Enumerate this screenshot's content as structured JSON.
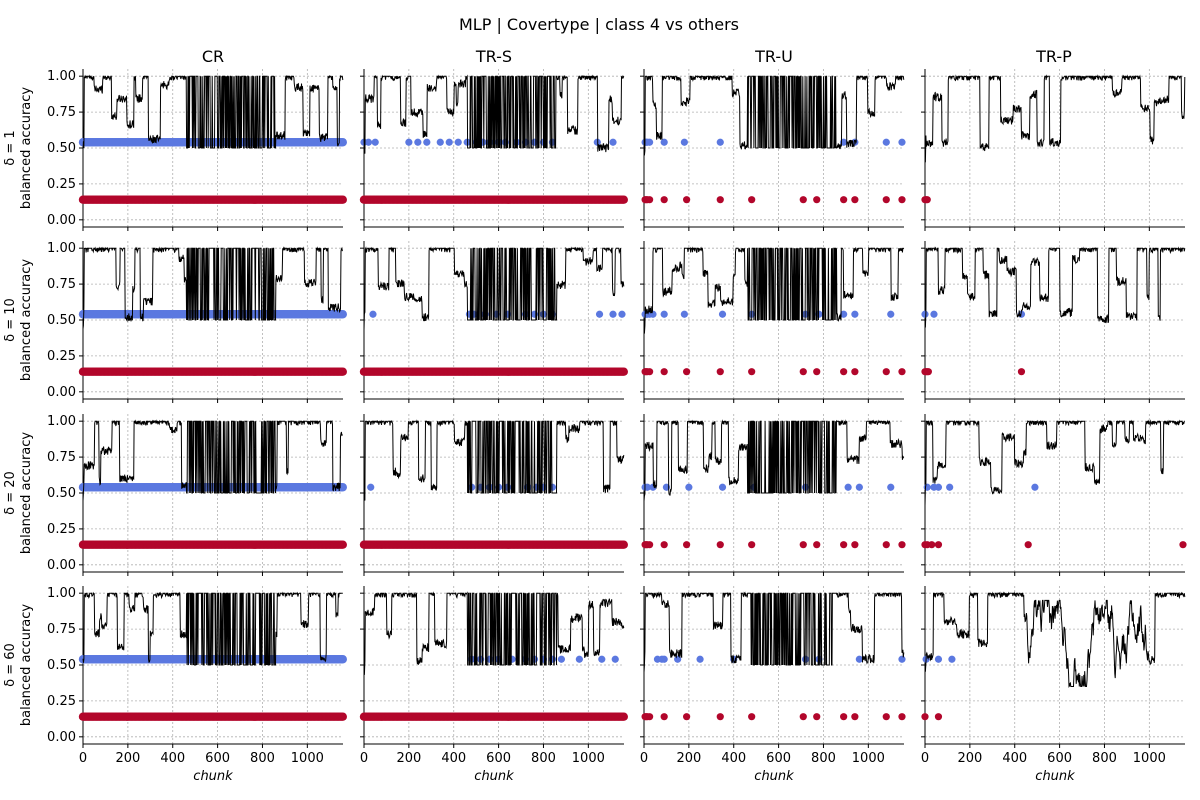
{
  "figure": {
    "title": "MLP | Covertype | class 4 vs others",
    "columns": [
      "CR",
      "TR-S",
      "TR-U",
      "TR-P"
    ],
    "row_labels": [
      [
        "δ = 1",
        "balanced accuracy"
      ],
      [
        "δ = 10",
        "balanced accuracy"
      ],
      [
        "δ = 20",
        "balanced accuracy"
      ],
      [
        "δ = 60",
        "balanced accuracy"
      ]
    ],
    "xlabel": "chunk",
    "x_ticks": [
      "0",
      "200",
      "400",
      "600",
      "800",
      "1000"
    ],
    "y_ticks": [
      "0.00",
      "0.25",
      "0.50",
      "0.75",
      "1.00"
    ],
    "colors": {
      "line": "#000000",
      "blue": "#5b78e0",
      "red": "#b2062b",
      "grid": "#b0b0b0"
    }
  },
  "chart_data": {
    "type": "line",
    "layout": "grid 4 rows x 4 columns, shared axes",
    "xlim": [
      0,
      1159
    ],
    "ylim": [
      -0.05,
      1.05
    ],
    "grid": true,
    "series_style": {
      "accuracy": "black line",
      "blue_markers": "blue dots at y=0.54",
      "red_markers": "red dots at y=0.14"
    },
    "panels": [
      {
        "row": 0,
        "col": 0,
        "blue_y": 0.54,
        "red_y": 0.14,
        "blue_x": "dense 0-1159",
        "red_x": "dense 0-1159"
      },
      {
        "row": 0,
        "col": 1,
        "blue_y": 0.54,
        "red_y": 0.14,
        "blue_x": [
          0,
          20,
          50,
          200,
          240,
          280,
          340,
          380,
          420,
          460,
          500,
          530,
          560,
          600,
          630,
          680,
          720,
          760,
          800,
          840,
          1040,
          1110
        ],
        "red_x": "dense 0-1159"
      },
      {
        "row": 0,
        "col": 2,
        "blue_y": 0.54,
        "red_y": 0.14,
        "blue_x": [
          5,
          10,
          15,
          25,
          90,
          180,
          340,
          890,
          940,
          1080,
          1150
        ],
        "red_x": [
          5,
          10,
          15,
          25,
          90,
          190,
          340,
          480,
          710,
          770,
          890,
          940,
          1080,
          1150
        ]
      },
      {
        "row": 0,
        "col": 3,
        "blue_y": 0.54,
        "red_y": 0.14,
        "blue_x": [],
        "red_x": [
          0,
          5,
          10
        ]
      },
      {
        "row": 1,
        "col": 0,
        "blue_y": 0.54,
        "red_y": 0.14,
        "blue_x": "dense 0-1159",
        "red_x": "dense 0-1159"
      },
      {
        "row": 1,
        "col": 1,
        "blue_y": 0.54,
        "red_y": 0.14,
        "blue_x": [
          40,
          470,
          490,
          540,
          590,
          640,
          720,
          760,
          800,
          840,
          1050,
          1110,
          1150
        ],
        "red_x": "dense 0-1159"
      },
      {
        "row": 1,
        "col": 2,
        "blue_y": 0.54,
        "red_y": 0.14,
        "blue_x": [
          5,
          10,
          15,
          25,
          40,
          90,
          180,
          350,
          480,
          720,
          780,
          890,
          940,
          1100
        ],
        "red_x": [
          5,
          10,
          15,
          25,
          90,
          190,
          340,
          480,
          710,
          770,
          890,
          940,
          1080,
          1150
        ]
      },
      {
        "row": 1,
        "col": 3,
        "blue_y": 0.54,
        "red_y": 0.14,
        "blue_x": [
          0,
          40,
          430
        ],
        "red_x": [
          0,
          5,
          10,
          15,
          430
        ]
      },
      {
        "row": 2,
        "col": 0,
        "blue_y": 0.54,
        "red_y": 0.14,
        "blue_x": "dense 0-1159",
        "red_x": "dense 0-1159"
      },
      {
        "row": 2,
        "col": 1,
        "blue_y": 0.54,
        "red_y": 0.14,
        "blue_x": [
          30,
          480,
          520,
          560,
          600,
          640,
          730,
          770,
          800,
          840
        ],
        "red_x": "dense 0-1159"
      },
      {
        "row": 2,
        "col": 2,
        "blue_y": 0.54,
        "red_y": 0.14,
        "blue_x": [
          5,
          15,
          40,
          100,
          200,
          350,
          490,
          720,
          910,
          960,
          1100
        ],
        "red_x": [
          5,
          10,
          15,
          25,
          90,
          190,
          340,
          480,
          710,
          770,
          890,
          940,
          1080,
          1150
        ]
      },
      {
        "row": 2,
        "col": 3,
        "blue_y": 0.54,
        "red_y": 0.14,
        "blue_x": [
          10,
          40,
          60,
          110,
          490
        ],
        "red_x": [
          0,
          10,
          30,
          60,
          460,
          1150
        ]
      },
      {
        "row": 3,
        "col": 0,
        "blue_y": 0.54,
        "red_y": 0.14,
        "blue_x": "dense 0-1159",
        "red_x": "dense 0-1159"
      },
      {
        "row": 3,
        "col": 1,
        "blue_y": 0.54,
        "red_y": 0.14,
        "blue_x": [
          480,
          520,
          560,
          600,
          660,
          720,
          760,
          800,
          840,
          880,
          960,
          1060,
          1120
        ],
        "red_x": "dense 0-1159"
      },
      {
        "row": 3,
        "col": 2,
        "blue_y": 0.54,
        "red_y": 0.14,
        "blue_x": [
          60,
          80,
          90,
          150,
          250,
          400,
          720,
          780,
          960,
          1150
        ],
        "red_x": [
          5,
          10,
          15,
          25,
          90,
          190,
          340,
          480,
          710,
          770,
          890,
          940,
          1080,
          1150
        ]
      },
      {
        "row": 3,
        "col": 3,
        "blue_y": 0.54,
        "red_y": 0.14,
        "blue_x": [
          5,
          60,
          120
        ],
        "red_x": [
          0,
          60
        ]
      }
    ]
  }
}
